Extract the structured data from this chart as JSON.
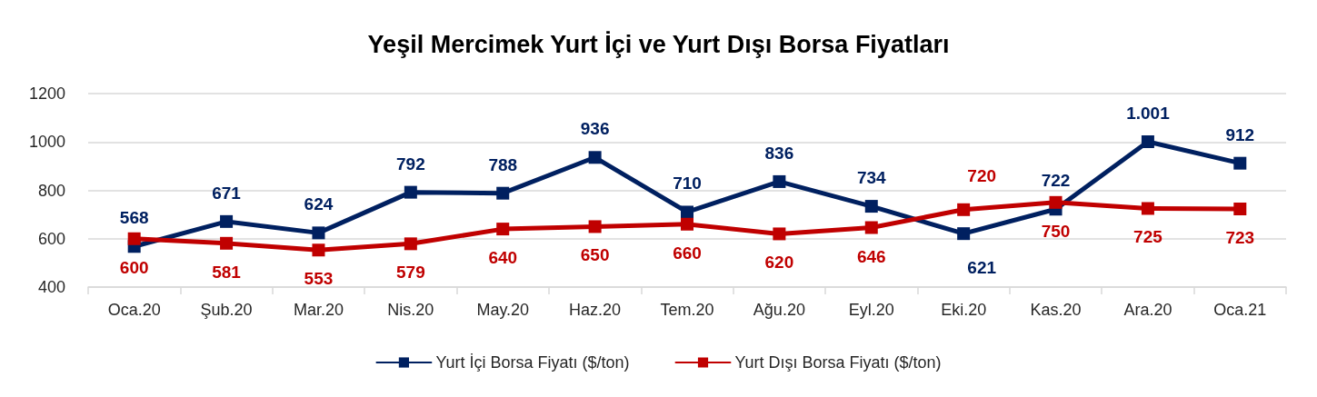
{
  "chart_data": {
    "type": "line",
    "title": "Yeşil Mercimek Yurt İçi ve Yurt Dışı Borsa Fiyatları",
    "categories": [
      "Oca.20",
      "Şub.20",
      "Mar.20",
      "Nis.20",
      "May.20",
      "Haz.20",
      "Tem.20",
      "Ağu.20",
      "Eyl.20",
      "Eki.20",
      "Kas.20",
      "Ara.20",
      "Oca.21"
    ],
    "series": [
      {
        "name": "Yurt İçi Borsa Fiyatı ($/ton)",
        "color": "#002060",
        "values": [
          568,
          671,
          624,
          792,
          788,
          936,
          710,
          836,
          734,
          621,
          722,
          1001,
          912
        ],
        "value_labels": [
          "568",
          "671",
          "624",
          "792",
          "788",
          "936",
          "710",
          "836",
          "734",
          "621",
          "722",
          "1.001",
          "912"
        ]
      },
      {
        "name": "Yurt Dışı Borsa Fiyatı ($/ton)",
        "color": "#c00000",
        "values": [
          600,
          581,
          553,
          579,
          640,
          650,
          660,
          620,
          646,
          720,
          750,
          725,
          723
        ],
        "value_labels": [
          "600",
          "581",
          "553",
          "579",
          "640",
          "650",
          "660",
          "620",
          "646",
          "720",
          "750",
          "725",
          "723"
        ]
      }
    ],
    "ylim": [
      400,
      1200
    ],
    "yticks": [
      400,
      600,
      800,
      1000,
      1200
    ],
    "grid": "y",
    "legend": "bottom",
    "marker": "square",
    "line_style": "solid"
  }
}
